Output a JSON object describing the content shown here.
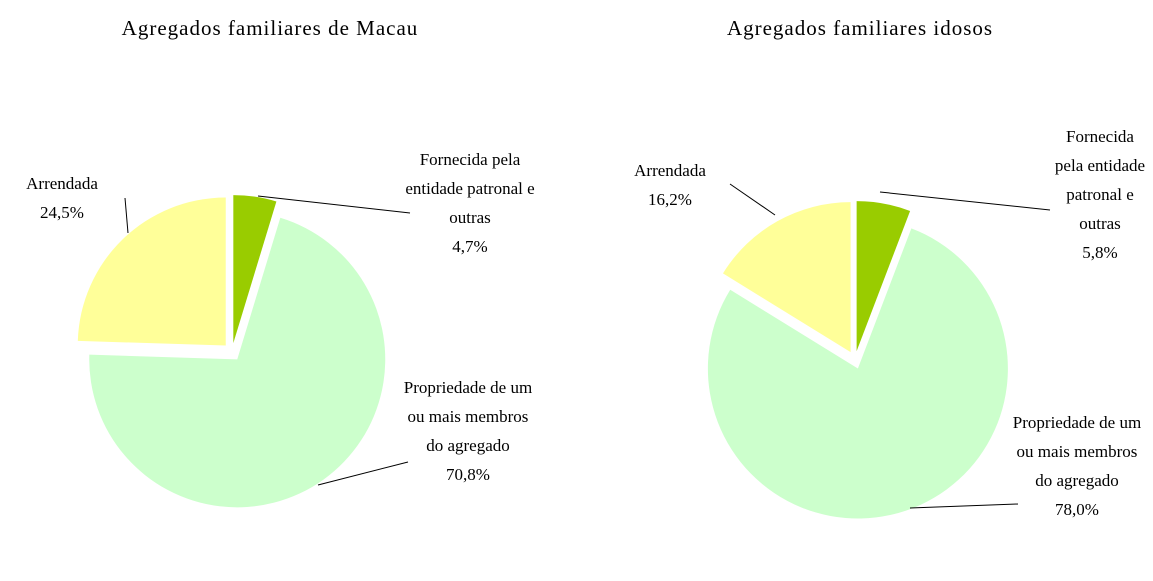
{
  "chart_data": [
    {
      "type": "pie",
      "title": "Agregados familiares de Macau",
      "categories": [
        "Fornecida pela entidade patronal e outras",
        "Propriedade de um ou mais membros do agregado",
        "Arrendada"
      ],
      "values": [
        4.7,
        70.8,
        24.5
      ],
      "value_labels": [
        "4,7%",
        "70,8%",
        "24,5%"
      ],
      "colors": [
        "#99cc00",
        "#ccffcc",
        "#ffff99"
      ]
    },
    {
      "type": "pie",
      "title": "Agregados familiares idosos",
      "categories": [
        "Fornecida pela entidade patronal e outras",
        "Propriedade de um ou mais membros do agregado",
        "Arrendada"
      ],
      "values": [
        5.8,
        78.0,
        16.2
      ],
      "value_labels": [
        "5,8%",
        "78,0%",
        "16,2%"
      ],
      "colors": [
        "#99cc00",
        "#ccffcc",
        "#ffff99"
      ]
    }
  ]
}
